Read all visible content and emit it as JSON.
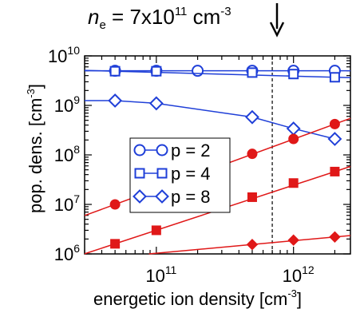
{
  "annotation": {
    "symbol": "n",
    "subscript": "e",
    "equals": " = 7x10",
    "exponent": "11",
    "unit": " cm",
    "unit_exponent": "-3"
  },
  "chart_data": {
    "type": "scatter",
    "x_scale": "log",
    "y_scale": "log",
    "xlim": [
      30000000000.0,
      2600000000000.0
    ],
    "ylim": [
      1000000.0,
      10000000000.0
    ],
    "xlabel": "energetic ion density [cm",
    "xlabel_exponent": "-3",
    "xlabel_suffix": "]",
    "ylabel": "pop. dens. [cm",
    "ylabel_exponent": "-3",
    "ylabel_suffix": "]",
    "x_ticks": [
      {
        "value": 100000000000.0,
        "base": "10",
        "exp": "11"
      },
      {
        "value": 1000000000000.0,
        "base": "10",
        "exp": "12"
      }
    ],
    "y_ticks": [
      {
        "value": 1000000.0,
        "base": "10",
        "exp": "6"
      },
      {
        "value": 10000000.0,
        "base": "10",
        "exp": "7"
      },
      {
        "value": 100000000.0,
        "base": "10",
        "exp": "8"
      },
      {
        "value": 1000000000.0,
        "base": "10",
        "exp": "9"
      },
      {
        "value": 10000000000.0,
        "base": "10",
        "exp": "10"
      }
    ],
    "vline": 700000000000.0,
    "grid": false,
    "legend_position": "center-left",
    "series": [
      {
        "name": "p = 2",
        "marker": "circle-open",
        "color": "#1f3fd8",
        "x": [
          50000000000.0,
          100000000000.0,
          200000000000.0,
          500000000000.0,
          1000000000000.0,
          2000000000000.0
        ],
        "y": [
          5000000000.0,
          5000000000.0,
          5000000000.0,
          5000000000.0,
          5000000000.0,
          5000000000.0
        ]
      },
      {
        "name": "p = 4",
        "marker": "square-open",
        "color": "#1f3fd8",
        "x": [
          50000000000.0,
          100000000000.0,
          500000000000.0,
          1000000000000.0,
          2000000000000.0
        ],
        "y": [
          4900000000.0,
          4900000000.0,
          4600000000.0,
          4300000000.0,
          3700000000.0
        ]
      },
      {
        "name": "p = 8",
        "marker": "diamond-open",
        "color": "#1f3fd8",
        "x": [
          50000000000.0,
          100000000000.0,
          500000000000.0,
          1000000000000.0,
          2000000000000.0
        ],
        "y": [
          1250000000.0,
          1100000000.0,
          580000000.0,
          340000000.0,
          210000000.0
        ]
      },
      {
        "name": "",
        "marker": "circle-filled",
        "color": "#e01818",
        "x": [
          50000000000.0,
          500000000000.0,
          1000000000000.0,
          2000000000000.0
        ],
        "y": [
          10000000.0,
          105000000.0,
          210000000.0,
          420000000.0
        ]
      },
      {
        "name": "",
        "marker": "square-filled",
        "color": "#e01818",
        "x": [
          50000000000.0,
          100000000000.0,
          500000000000.0,
          1000000000000.0,
          2000000000000.0
        ],
        "y": [
          1600000.0,
          3000000.0,
          14000000.0,
          27000000.0,
          46000000.0
        ]
      },
      {
        "name": "",
        "marker": "diamond-filled",
        "color": "#e01818",
        "x": [
          500000000000.0,
          1000000000000.0,
          2000000000000.0
        ],
        "y": [
          1550000.0,
          1900000.0,
          2200000.0
        ]
      }
    ]
  }
}
